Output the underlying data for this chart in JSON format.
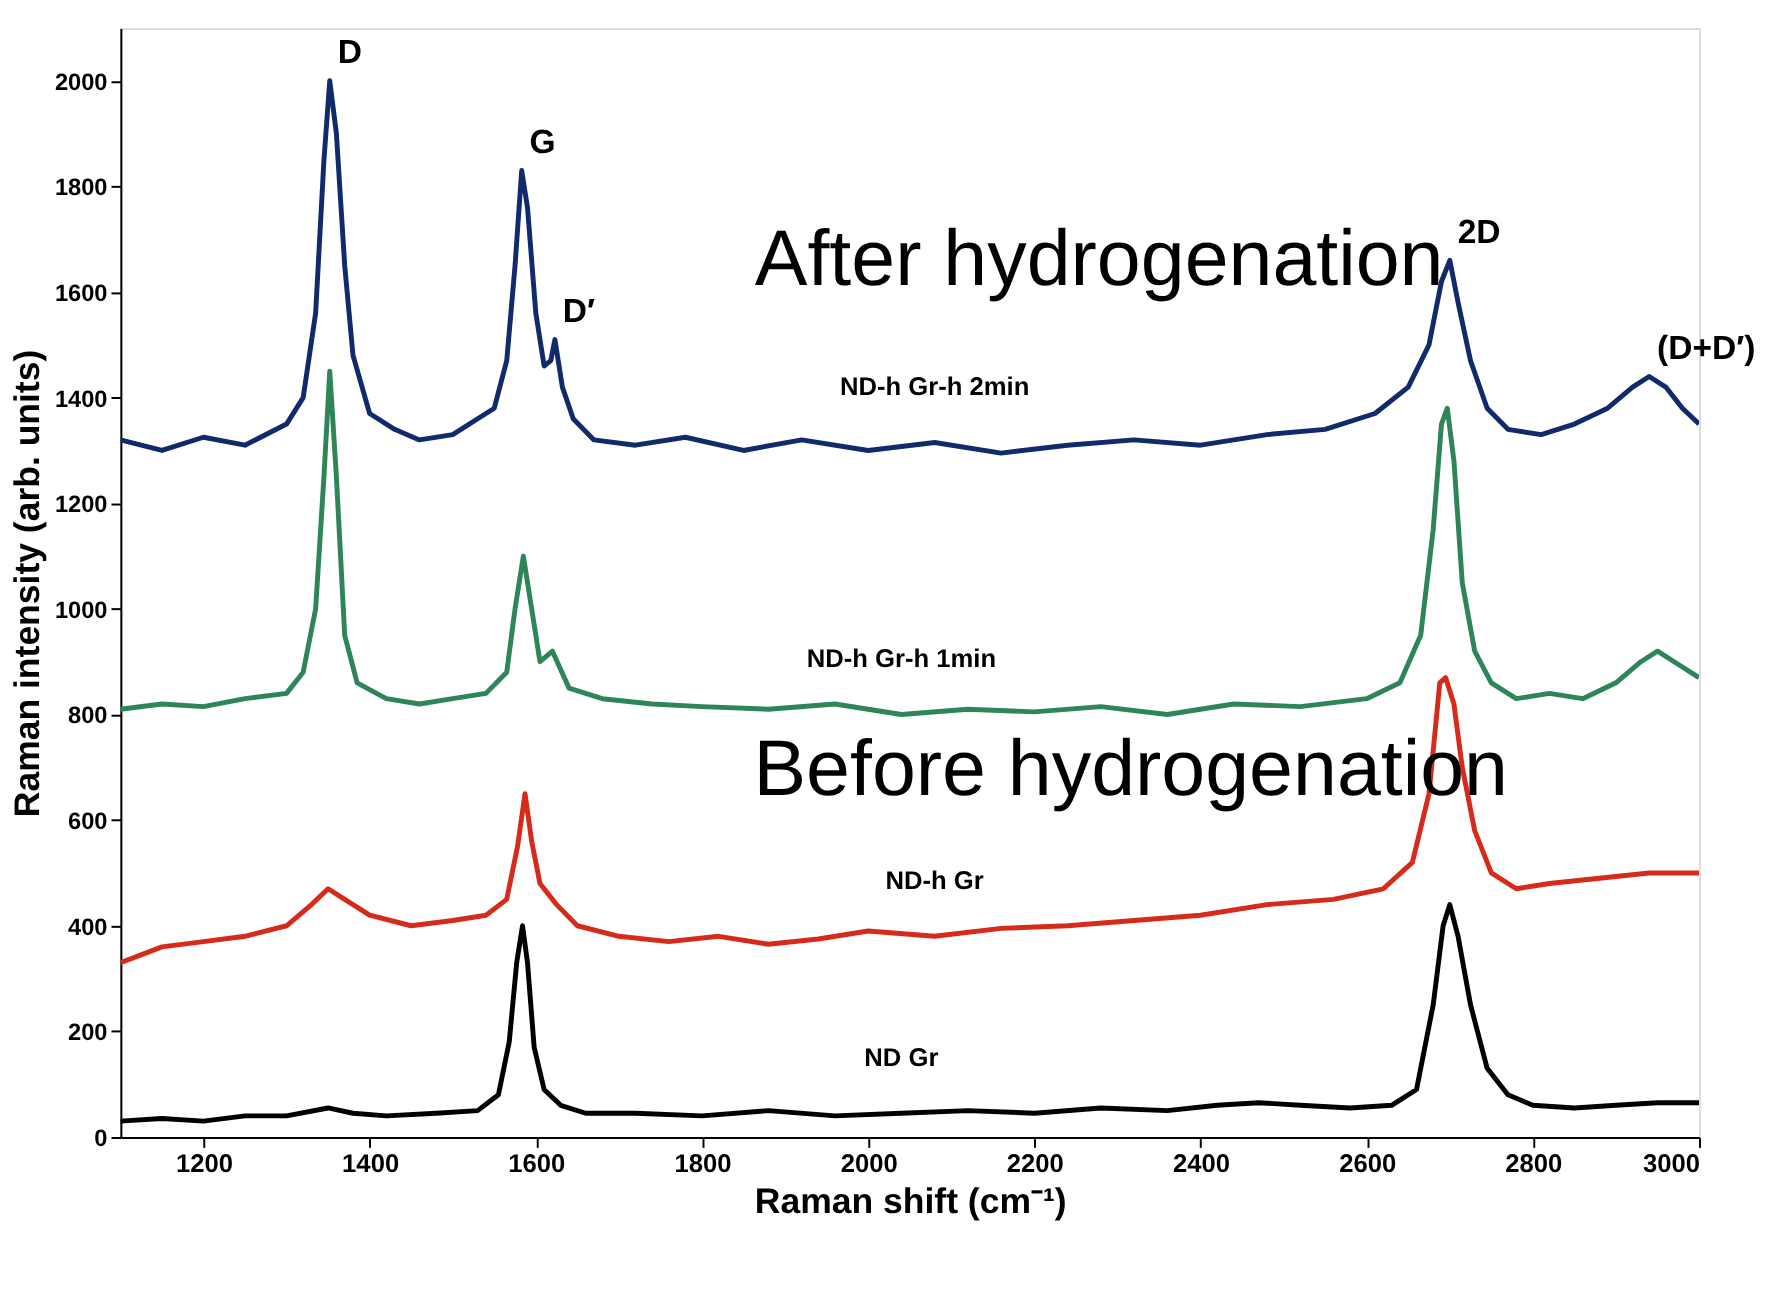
{
  "chart_data": {
    "type": "line",
    "xlabel": "Raman shift (cm⁻¹)",
    "ylabel": "Raman intensity (arb. units)",
    "xlim": [
      1100,
      3000
    ],
    "ylim": [
      0,
      2100
    ],
    "xticks": [
      1200,
      1400,
      1600,
      1800,
      2000,
      2200,
      2400,
      2600,
      2800,
      3000
    ],
    "yticks": [
      0,
      200,
      400,
      600,
      800,
      1000,
      1200,
      1400,
      1600,
      1800,
      2000
    ],
    "grid": false,
    "legend": false,
    "marker": "none",
    "line_style": "solid",
    "series": [
      {
        "name": "ND-h Gr-h 2min",
        "color": "#102a6b",
        "x": [
          1100,
          1150,
          1200,
          1250,
          1300,
          1320,
          1335,
          1345,
          1352,
          1360,
          1370,
          1380,
          1400,
          1430,
          1460,
          1500,
          1530,
          1550,
          1565,
          1575,
          1583,
          1590,
          1600,
          1610,
          1618,
          1623,
          1632,
          1645,
          1670,
          1720,
          1780,
          1850,
          1920,
          2000,
          2080,
          2160,
          2240,
          2320,
          2400,
          2480,
          2550,
          2610,
          2650,
          2675,
          2690,
          2700,
          2710,
          2725,
          2745,
          2770,
          2810,
          2850,
          2890,
          2920,
          2940,
          2960,
          2980,
          3000
        ],
        "values": [
          1320,
          1300,
          1325,
          1310,
          1350,
          1400,
          1560,
          1850,
          2000,
          1900,
          1650,
          1480,
          1370,
          1340,
          1320,
          1330,
          1360,
          1380,
          1470,
          1650,
          1830,
          1760,
          1560,
          1460,
          1470,
          1510,
          1420,
          1360,
          1320,
          1310,
          1325,
          1300,
          1320,
          1300,
          1315,
          1295,
          1310,
          1320,
          1310,
          1330,
          1340,
          1370,
          1420,
          1500,
          1620,
          1660,
          1580,
          1470,
          1380,
          1340,
          1330,
          1350,
          1380,
          1420,
          1440,
          1420,
          1380,
          1350
        ]
      },
      {
        "name": "ND-h Gr-h 1min",
        "color": "#2e8557",
        "x": [
          1100,
          1150,
          1200,
          1250,
          1300,
          1320,
          1335,
          1345,
          1352,
          1360,
          1370,
          1385,
          1420,
          1460,
          1500,
          1540,
          1565,
          1575,
          1585,
          1595,
          1605,
          1620,
          1640,
          1680,
          1740,
          1800,
          1880,
          1960,
          2040,
          2120,
          2200,
          2280,
          2360,
          2440,
          2520,
          2600,
          2640,
          2665,
          2680,
          2690,
          2697,
          2705,
          2715,
          2730,
          2750,
          2780,
          2820,
          2860,
          2900,
          2930,
          2950,
          2970,
          3000
        ],
        "values": [
          810,
          820,
          815,
          830,
          840,
          880,
          1000,
          1250,
          1450,
          1250,
          950,
          860,
          830,
          820,
          830,
          840,
          880,
          1000,
          1100,
          1000,
          900,
          920,
          850,
          830,
          820,
          815,
          810,
          820,
          800,
          810,
          805,
          815,
          800,
          820,
          815,
          830,
          860,
          950,
          1150,
          1350,
          1380,
          1280,
          1050,
          920,
          860,
          830,
          840,
          830,
          860,
          900,
          920,
          900,
          870
        ]
      },
      {
        "name": "ND-h Gr",
        "color": "#d62b1a",
        "x": [
          1100,
          1150,
          1200,
          1250,
          1300,
          1330,
          1350,
          1370,
          1400,
          1450,
          1500,
          1540,
          1565,
          1578,
          1587,
          1595,
          1605,
          1625,
          1650,
          1700,
          1760,
          1820,
          1880,
          1940,
          2000,
          2080,
          2160,
          2240,
          2320,
          2400,
          2480,
          2560,
          2620,
          2655,
          2675,
          2688,
          2695,
          2705,
          2715,
          2730,
          2750,
          2780,
          2820,
          2880,
          2940,
          3000
        ],
        "values": [
          330,
          360,
          370,
          380,
          400,
          440,
          470,
          450,
          420,
          400,
          410,
          420,
          450,
          550,
          650,
          560,
          480,
          440,
          400,
          380,
          370,
          380,
          365,
          375,
          390,
          380,
          395,
          400,
          410,
          420,
          440,
          450,
          470,
          520,
          650,
          860,
          870,
          820,
          700,
          580,
          500,
          470,
          480,
          490,
          500,
          500
        ]
      },
      {
        "name": "ND Gr",
        "color": "#000000",
        "x": [
          1100,
          1150,
          1200,
          1250,
          1300,
          1350,
          1380,
          1420,
          1480,
          1530,
          1555,
          1568,
          1577,
          1584,
          1590,
          1598,
          1610,
          1630,
          1660,
          1720,
          1800,
          1880,
          1960,
          2040,
          2120,
          2200,
          2280,
          2360,
          2420,
          2470,
          2520,
          2580,
          2630,
          2660,
          2680,
          2692,
          2700,
          2710,
          2725,
          2745,
          2770,
          2800,
          2850,
          2900,
          2950,
          3000
        ],
        "values": [
          30,
          35,
          30,
          40,
          40,
          55,
          45,
          40,
          45,
          50,
          80,
          180,
          330,
          400,
          330,
          170,
          90,
          60,
          45,
          45,
          40,
          50,
          40,
          45,
          50,
          45,
          55,
          50,
          60,
          65,
          60,
          55,
          60,
          90,
          250,
          400,
          440,
          380,
          250,
          130,
          80,
          60,
          55,
          60,
          65,
          65
        ]
      }
    ],
    "annotations": [
      {
        "text": "D",
        "x": 1352,
        "y": 2000
      },
      {
        "text": "G",
        "x": 1583,
        "y": 1830
      },
      {
        "text": "D′",
        "x": 1623,
        "y": 1510
      },
      {
        "text": "2D",
        "x": 2700,
        "y": 1660
      },
      {
        "text": "(D+D′)",
        "x": 2940,
        "y": 1440
      },
      "After hydrogenation",
      "Before hydrogenation"
    ]
  }
}
